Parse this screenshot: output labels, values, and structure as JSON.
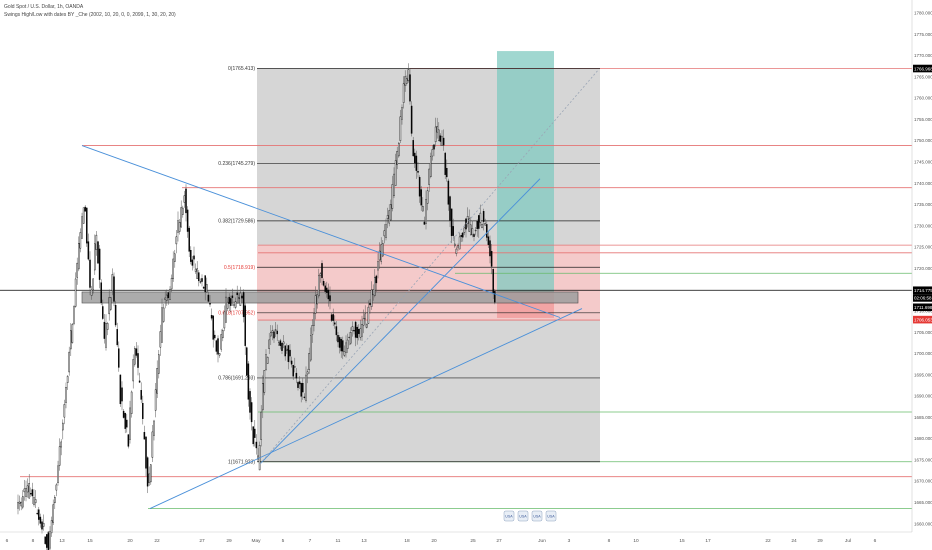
{
  "header": {
    "symbol": "Gold Spot / U.S. Dollar, 1h, OANDA",
    "indicator": "Swings High/Low with dates BY _Che (2002, 10, 20, 0, 0, 2099, 1, 30, 20, 20)"
  },
  "chart_data": {
    "type": "candlestick",
    "ylim": [
      1658,
      1783
    ],
    "price_axis_ticks": [
      "1780.000",
      "1775.000",
      "1770.000",
      "1765.000",
      "1760.000",
      "1755.000",
      "1750.000",
      "1745.000",
      "1740.000",
      "1735.000",
      "1730.000",
      "1725.000",
      "1720.000",
      "1715.000",
      "1710.000",
      "1705.000",
      "1700.000",
      "1695.000",
      "1690.000",
      "1685.000",
      "1680.000",
      "1675.000",
      "1670.000",
      "1665.000",
      "1660.000"
    ],
    "time_axis_ticks": [
      "6",
      "8",
      "13",
      "15",
      "20",
      "22",
      "27",
      "29",
      "May",
      "5",
      "7",
      "11",
      "13",
      "18",
      "20",
      "25",
      "27",
      "Jun",
      "3",
      "8",
      "10",
      "15",
      "17",
      "22",
      "24",
      "29",
      "Jul",
      "6"
    ],
    "price_tags": [
      {
        "value": "1766.968",
        "color": "#000000",
        "text_color": "#ffffff",
        "price": 1766.9
      },
      {
        "value": "1714.775",
        "color": "#000000",
        "text_color": "#ffffff",
        "price": 1714.8
      },
      {
        "value": "02:06:58",
        "color": "#000000",
        "text_color": "#ffffff",
        "price": 1713.0
      },
      {
        "value": "1711.698",
        "color": "#000000",
        "text_color": "#ffffff",
        "price": 1710.8
      },
      {
        "value": "1706.053",
        "color": "#e53935",
        "text_color": "#ffffff",
        "price": 1707.9
      }
    ],
    "fib_levels": [
      {
        "label": "0(1765.413)",
        "price": 1766.9,
        "label_color": "#333333"
      },
      {
        "label": "0.236(1745.279)",
        "price": 1744.6,
        "label_color": "#333333"
      },
      {
        "label": "0.382(1729.586)",
        "price": 1731.1,
        "label_color": "#333333"
      },
      {
        "label": "0.5(1718.919)",
        "price": 1720.2,
        "label_color": "#e53935"
      },
      {
        "label": "0.618(1707.952)",
        "price": 1709.5,
        "label_color": "#e53935"
      },
      {
        "label": "0.786(1691.293)",
        "price": 1694.2,
        "label_color": "#333333"
      },
      {
        "label": "1(1671.923)",
        "price": 1674.5,
        "label_color": "#333333"
      }
    ],
    "events": [
      {
        "label": "USA"
      },
      {
        "label": "USA"
      },
      {
        "label": "USA"
      },
      {
        "label": "USA"
      }
    ],
    "colors": {
      "candle": "#000000",
      "resistance": "#e57373",
      "support": "#66bb6a",
      "trendline": "#4a90d9",
      "fib_zone": "#cfcfcf",
      "pink_zone": "#f7c9c9",
      "target_zone": "#80c9c0"
    }
  }
}
